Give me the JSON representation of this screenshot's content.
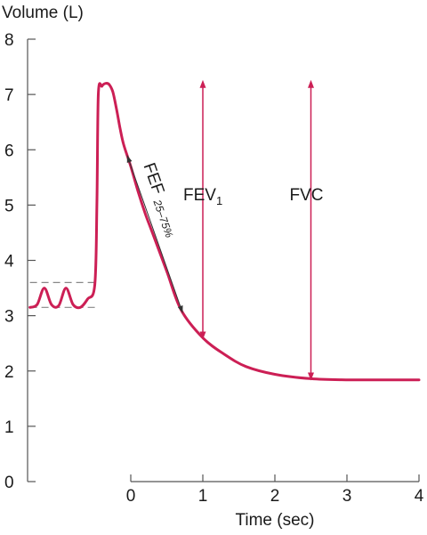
{
  "chart_data": {
    "type": "line",
    "ylabel": "Volume (L)",
    "xlabel": "Time (sec)",
    "ylim": [
      0,
      8
    ],
    "xlim": [
      -1.4,
      4
    ],
    "y_ticks": [
      "0",
      "1",
      "2",
      "3",
      "4",
      "5",
      "6",
      "7",
      "8"
    ],
    "x_ticks": [
      "0",
      "1",
      "2",
      "3",
      "4"
    ],
    "grid": false,
    "colors": {
      "curve": "#cc1f55",
      "axis": "#555555",
      "dashed": "#888888"
    },
    "series": [
      {
        "x": [
          -1.4,
          -1.3,
          -1.2,
          -1.1,
          -1.0,
          -0.9,
          -0.8,
          -0.7,
          -0.6,
          -0.5,
          -0.47,
          -0.45,
          -0.4,
          -0.35,
          -0.3,
          -0.25,
          -0.2,
          -0.15,
          -0.1,
          0.0,
          0.1,
          0.2,
          0.3,
          0.5,
          0.7,
          1.0,
          1.3,
          1.6,
          2.0,
          2.5,
          3.0,
          3.5,
          4.0
        ],
        "y": [
          3.15,
          3.2,
          3.5,
          3.2,
          3.18,
          3.5,
          3.2,
          3.15,
          3.3,
          3.55,
          5.0,
          7.0,
          7.15,
          7.2,
          7.18,
          7.05,
          6.75,
          6.4,
          6.1,
          5.7,
          5.25,
          4.85,
          4.5,
          3.8,
          3.1,
          2.6,
          2.3,
          2.08,
          1.94,
          1.86,
          1.84,
          1.84,
          1.84
        ]
      }
    ],
    "annotations": {
      "fev1": {
        "label": "FEV",
        "subscript": "1",
        "x": 1.0,
        "y_top": 7.2,
        "y_bottom": 2.6
      },
      "fvc": {
        "label": "FVC",
        "x": 2.5,
        "y_top": 7.2,
        "y_bottom": 1.86
      },
      "fef": {
        "label": "FEF",
        "subscript": "25–75%",
        "x_start": -0.05,
        "y_start": 5.9,
        "x_end": 0.72,
        "y_end": 3.05
      },
      "tidal_dashed_lines": {
        "y_values": [
          3.6,
          3.15
        ],
        "x_start": -1.4,
        "x_end": -0.5
      }
    }
  }
}
